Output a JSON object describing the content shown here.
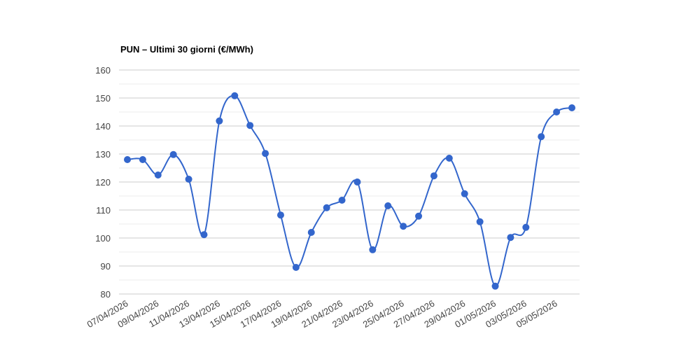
{
  "chart_data": {
    "type": "line",
    "title": "PUN – Ultimi 30 giorni (€/MWh)",
    "categories": [
      "07/04/2026",
      null,
      "09/04/2026",
      null,
      "11/04/2026",
      null,
      "13/04/2026",
      null,
      "15/04/2026",
      null,
      "17/04/2026",
      null,
      "19/04/2026",
      null,
      "21/04/2026",
      null,
      "23/04/2026",
      null,
      "25/04/2026",
      null,
      "27/04/2026",
      null,
      "29/04/2026",
      null,
      "01/05/2026",
      null,
      "03/05/2026",
      null,
      "05/05/2026",
      null
    ],
    "series": [
      {
        "color": "#3366cc",
        "values": [
          128,
          128,
          122.5,
          129.8,
          121,
          101.2,
          141.8,
          150.8,
          140.2,
          130.2,
          108.2,
          89.5,
          102,
          110.8,
          113.5,
          120,
          95.8,
          111.5,
          104.2,
          107.8,
          122.2,
          128.5,
          115.8,
          105.8,
          82.8,
          100.2,
          103.8,
          136.2,
          145,
          146.5
        ]
      }
    ],
    "ylim": [
      80,
      160
    ],
    "yticks": [
      80,
      90,
      100,
      110,
      120,
      130,
      140,
      150,
      160
    ],
    "minor_yticks": [
      85,
      95,
      105,
      115,
      125,
      135,
      145,
      155
    ],
    "grid": true,
    "smooth": true
  }
}
